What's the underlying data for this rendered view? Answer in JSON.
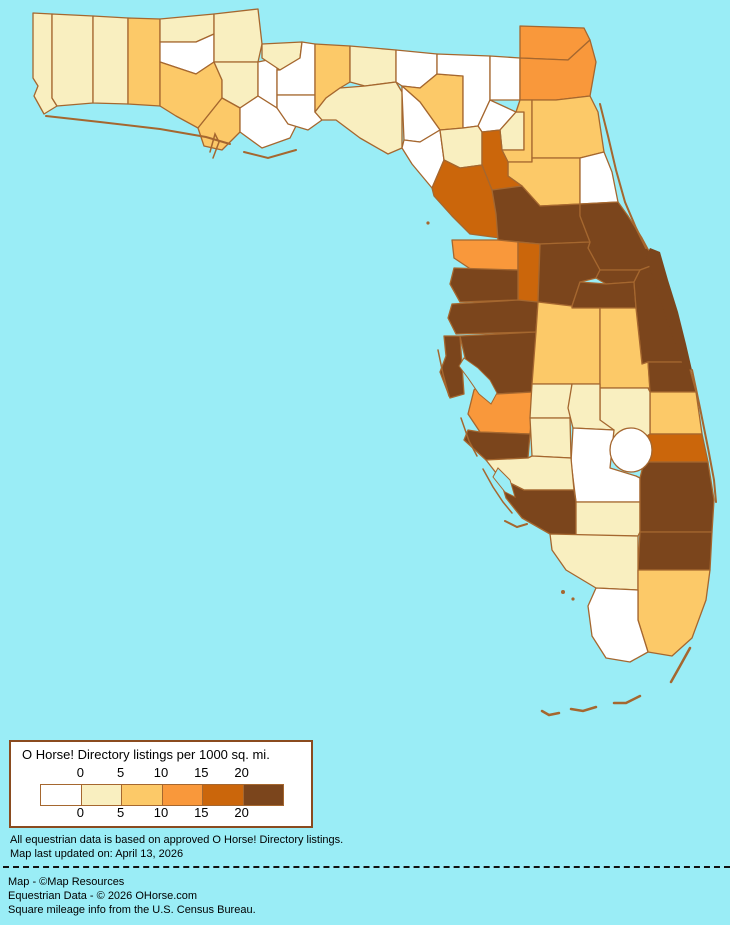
{
  "legend": {
    "title": "O Horse! Directory listings per 1000 sq. mi.",
    "ticks": [
      "0",
      "5",
      "10",
      "15",
      "20"
    ],
    "swatches": [
      {
        "color": "#FFFFFF"
      },
      {
        "color": "#F9EFC0"
      },
      {
        "color": "#FCC968"
      },
      {
        "color": "#F9983B"
      },
      {
        "color": "#CB660B"
      },
      {
        "color": "#7B451C"
      }
    ]
  },
  "map": {
    "region": "Florida",
    "water_color": "#9AEDF6",
    "boundary_color": "#A5672F",
    "counties": [
      {
        "name": "Escambia",
        "level": 1
      },
      {
        "name": "Santa Rosa",
        "level": 1
      },
      {
        "name": "Okaloosa",
        "level": 1
      },
      {
        "name": "Walton",
        "level": 2
      },
      {
        "name": "Holmes",
        "level": 1
      },
      {
        "name": "Washington",
        "level": 0
      },
      {
        "name": "Bay",
        "level": 2
      },
      {
        "name": "Jackson",
        "level": 1
      },
      {
        "name": "Calhoun",
        "level": 1
      },
      {
        "name": "Gulf",
        "level": 2
      },
      {
        "name": "Liberty",
        "level": 0
      },
      {
        "name": "Franklin",
        "level": 0
      },
      {
        "name": "Gadsden",
        "level": 1
      },
      {
        "name": "Leon",
        "level": 0
      },
      {
        "name": "Wakulla",
        "level": 0
      },
      {
        "name": "Jefferson",
        "level": 2
      },
      {
        "name": "Madison",
        "level": 1
      },
      {
        "name": "Taylor",
        "level": 1
      },
      {
        "name": "Hamilton",
        "level": 0
      },
      {
        "name": "Suwannee",
        "level": 2
      },
      {
        "name": "Lafayette",
        "level": 0
      },
      {
        "name": "Dixie",
        "level": 0
      },
      {
        "name": "Columbia",
        "level": 0
      },
      {
        "name": "Baker",
        "level": 0
      },
      {
        "name": "Union",
        "level": 0
      },
      {
        "name": "Bradford",
        "level": 1
      },
      {
        "name": "Nassau",
        "level": 3
      },
      {
        "name": "Duval",
        "level": 3
      },
      {
        "name": "Clay",
        "level": 2
      },
      {
        "name": "St. Johns",
        "level": 2
      },
      {
        "name": "Putnam",
        "level": 2
      },
      {
        "name": "Flagler",
        "level": 0
      },
      {
        "name": "Gilchrist",
        "level": 1
      },
      {
        "name": "Alachua",
        "level": 4
      },
      {
        "name": "Levy",
        "level": 4
      },
      {
        "name": "Marion",
        "level": 5
      },
      {
        "name": "Volusia",
        "level": 5
      },
      {
        "name": "Citrus",
        "level": 3
      },
      {
        "name": "Sumter",
        "level": 4
      },
      {
        "name": "Lake",
        "level": 5
      },
      {
        "name": "Seminole",
        "level": 5
      },
      {
        "name": "Orange",
        "level": 5
      },
      {
        "name": "Brevard",
        "level": 5
      },
      {
        "name": "Hernando",
        "level": 5
      },
      {
        "name": "Pasco",
        "level": 5
      },
      {
        "name": "Pinellas",
        "level": 5
      },
      {
        "name": "Hillsborough",
        "level": 5
      },
      {
        "name": "Polk",
        "level": 2
      },
      {
        "name": "Osceola",
        "level": 2
      },
      {
        "name": "Indian River",
        "level": 5
      },
      {
        "name": "St. Lucie",
        "level": 2
      },
      {
        "name": "Okeechobee",
        "level": 1
      },
      {
        "name": "Martin",
        "level": 4
      },
      {
        "name": "Manatee",
        "level": 3
      },
      {
        "name": "Hardee",
        "level": 1
      },
      {
        "name": "DeSoto",
        "level": 1
      },
      {
        "name": "Highlands",
        "level": 1
      },
      {
        "name": "Glades",
        "level": 0
      },
      {
        "name": "Sarasota",
        "level": 5
      },
      {
        "name": "Charlotte",
        "level": 1
      },
      {
        "name": "Lee",
        "level": 5
      },
      {
        "name": "Hendry",
        "level": 1
      },
      {
        "name": "Palm Beach",
        "level": 5
      },
      {
        "name": "Broward",
        "level": 5
      },
      {
        "name": "Collier",
        "level": 1
      },
      {
        "name": "Miami-Dade",
        "level": 2
      },
      {
        "name": "Monroe",
        "level": 0
      }
    ]
  },
  "footnotes": {
    "data_note": "All equestrian data is based on approved O Horse! Directory listings.",
    "updated_note": "Map last updated on: April 13, 2026"
  },
  "credits": {
    "map_credit": "Map - ©Map Resources",
    "data_credit": "Equestrian Data - © 2026 OHorse.com",
    "mileage_credit": "Square mileage info from the U.S. Census Bureau."
  }
}
